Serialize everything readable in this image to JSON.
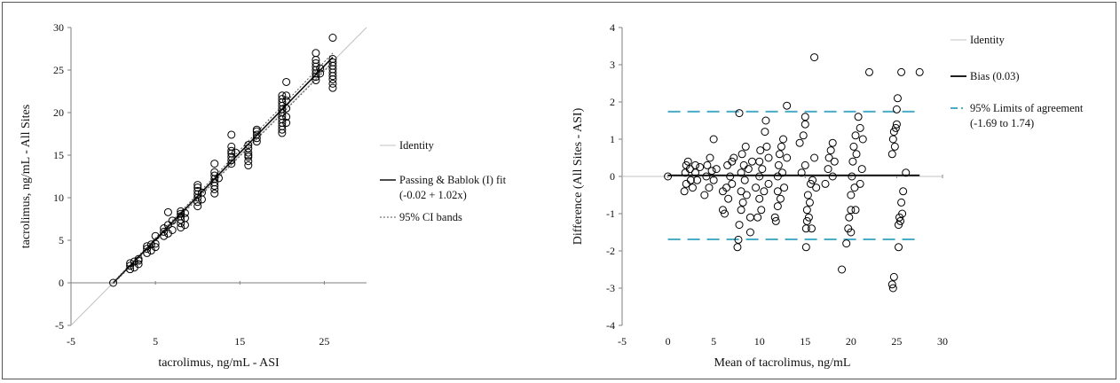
{
  "colors": {
    "axis": "#7f7f7f",
    "identity": "#c0c0c0",
    "fit": "#111111",
    "ci": "#555555",
    "bias": "#000000",
    "limits": "#4bacc6",
    "marker": "#000000"
  },
  "chart_data": [
    {
      "type": "scatter",
      "title": "",
      "xlabel": "tacrolimus,  ng/mL - ASI",
      "ylabel": "tacrolimus, ng/mL - All Sites",
      "xlim": [
        -5,
        30
      ],
      "ylim": [
        -5,
        30
      ],
      "x_ticks": [
        "-5",
        "5",
        "15",
        "25"
      ],
      "y_ticks": [
        "-5",
        "0",
        "5",
        "10",
        "15",
        "20",
        "25",
        "30"
      ],
      "grid": false,
      "legend_position": "right",
      "legend": [
        {
          "name": "Identity",
          "style": "identity"
        },
        {
          "name": "Passing & Bablok (I) fit",
          "sub": "(-0.02 + 1.02x)",
          "style": "fit"
        },
        {
          "name": "95% CI bands",
          "style": "ci"
        }
      ],
      "lines": {
        "identity": [
          [
            -5,
            -5
          ],
          [
            30,
            30
          ]
        ],
        "fit": {
          "intercept": -0.02,
          "slope": 1.02,
          "x_range": [
            0,
            26
          ]
        },
        "ci_bands": {
          "lower": {
            "intercept": -0.12,
            "slope": 1.0
          },
          "upper": {
            "intercept": 0.08,
            "slope": 1.035
          },
          "x_range": [
            0,
            26
          ]
        }
      },
      "series": [
        {
          "marker": "circle",
          "points": [
            [
              0,
              0
            ],
            [
              2,
              1.6
            ],
            [
              2,
              2.0
            ],
            [
              2,
              2.3
            ],
            [
              2.5,
              2.5
            ],
            [
              2.5,
              1.8
            ],
            [
              3,
              2.8
            ],
            [
              3,
              2.6
            ],
            [
              3,
              2.2
            ],
            [
              4,
              3.5
            ],
            [
              4,
              4.0
            ],
            [
              4,
              4.3
            ],
            [
              4.5,
              4.5
            ],
            [
              4.5,
              3.8
            ],
            [
              5,
              5.5
            ],
            [
              5,
              4.6
            ],
            [
              5,
              4.2
            ],
            [
              6,
              5.5
            ],
            [
              6,
              6.0
            ],
            [
              6,
              6.4
            ],
            [
              6.5,
              6.8
            ],
            [
              6.5,
              8.3
            ],
            [
              6.5,
              5.8
            ],
            [
              7,
              7.3
            ],
            [
              7,
              6.2
            ],
            [
              8,
              6.5
            ],
            [
              8,
              7.0
            ],
            [
              8,
              7.4
            ],
            [
              8,
              7.8
            ],
            [
              8,
              8.1
            ],
            [
              8,
              8.4
            ],
            [
              8.5,
              8.2
            ],
            [
              8.5,
              6.8
            ],
            [
              8.5,
              7.6
            ],
            [
              10,
              9.0
            ],
            [
              10,
              9.5
            ],
            [
              10,
              10.0
            ],
            [
              10,
              10.4
            ],
            [
              10,
              10.8
            ],
            [
              10,
              11.2
            ],
            [
              10,
              11.5
            ],
            [
              10.5,
              10.6
            ],
            [
              10.5,
              9.8
            ],
            [
              12,
              10.5
            ],
            [
              12,
              11.0
            ],
            [
              12,
              11.4
            ],
            [
              12,
              11.8
            ],
            [
              12,
              12.2
            ],
            [
              12,
              12.6
            ],
            [
              12,
              13.0
            ],
            [
              12,
              14.0
            ],
            [
              12.5,
              12.3
            ],
            [
              14,
              14.0
            ],
            [
              14,
              14.4
            ],
            [
              14,
              14.8
            ],
            [
              14,
              15.2
            ],
            [
              14,
              15.5
            ],
            [
              14,
              16.0
            ],
            [
              14,
              17.4
            ],
            [
              14.5,
              15.3
            ],
            [
              16,
              13.8
            ],
            [
              16,
              14.3
            ],
            [
              16,
              14.8
            ],
            [
              16,
              15.3
            ],
            [
              16,
              15.8
            ],
            [
              16,
              16.2
            ],
            [
              16,
              15.0
            ],
            [
              17,
              16.6
            ],
            [
              17,
              17.0
            ],
            [
              17,
              17.4
            ],
            [
              17,
              17.8
            ],
            [
              17,
              18.0
            ],
            [
              20,
              17.6
            ],
            [
              20,
              18.0
            ],
            [
              20,
              18.4
            ],
            [
              20,
              18.8
            ],
            [
              20,
              19.2
            ],
            [
              20,
              19.6
            ],
            [
              20,
              20.0
            ],
            [
              20,
              20.4
            ],
            [
              20,
              20.8
            ],
            [
              20,
              21.2
            ],
            [
              20,
              21.6
            ],
            [
              20,
              22.0
            ],
            [
              20.5,
              18.8
            ],
            [
              20.5,
              19.5
            ],
            [
              20.5,
              20.5
            ],
            [
              20.5,
              21.4
            ],
            [
              20.5,
              22.0
            ],
            [
              20.5,
              23.6
            ],
            [
              24,
              23.8
            ],
            [
              24,
              24.2
            ],
            [
              24,
              24.6
            ],
            [
              24,
              25.0
            ],
            [
              24,
              25.4
            ],
            [
              24,
              25.8
            ],
            [
              24,
              26.2
            ],
            [
              24,
              27.0
            ],
            [
              24.5,
              24.6
            ],
            [
              24.5,
              25.2
            ],
            [
              26,
              22.9
            ],
            [
              26,
              23.4
            ],
            [
              26,
              23.9
            ],
            [
              26,
              24.3
            ],
            [
              26,
              24.7
            ],
            [
              26,
              25.1
            ],
            [
              26,
              25.5
            ],
            [
              26,
              25.9
            ],
            [
              26,
              26.3
            ],
            [
              26,
              28.8
            ]
          ]
        }
      ]
    },
    {
      "type": "scatter",
      "title": "",
      "xlabel": "Mean of tacrolimus, ng/mL",
      "ylabel": "Difference (All Sites - ASI)",
      "xlim": [
        -5,
        30
      ],
      "ylim": [
        -4,
        4
      ],
      "x_ticks": [
        "-5",
        "0",
        "5",
        "10",
        "15",
        "20",
        "25",
        "30"
      ],
      "y_ticks": [
        "-4",
        "-3",
        "-2",
        "-1",
        "0",
        "1",
        "2",
        "3",
        "4"
      ],
      "grid": false,
      "legend_position": "right",
      "legend": [
        {
          "name": "Identity",
          "style": "identity"
        },
        {
          "name": "Bias (0.03)",
          "style": "bias"
        },
        {
          "name": "95% Limits of agreement",
          "sub": "(-1.69 to 1.74)",
          "style": "limits"
        }
      ],
      "lines": {
        "identity_y": 0,
        "bias": {
          "value": 0.03,
          "x_range": [
            0,
            27.5
          ]
        },
        "loa_lower": -1.69,
        "loa_upper": 1.74,
        "loa_x_range": [
          0,
          27.5
        ]
      },
      "series": [
        {
          "marker": "circle",
          "points": [
            [
              0,
              0
            ],
            [
              1.8,
              -0.4
            ],
            [
              1.9,
              0.1
            ],
            [
              2,
              0.3
            ],
            [
              2,
              -0.2
            ],
            [
              2.2,
              0.4
            ],
            [
              2.4,
              0.2
            ],
            [
              2.5,
              -0.1
            ],
            [
              2.7,
              -0.3
            ],
            [
              3,
              0.3
            ],
            [
              3,
              0.1
            ],
            [
              3.2,
              -0.1
            ],
            [
              3.5,
              0.25
            ],
            [
              4,
              -0.5
            ],
            [
              4.2,
              0.0
            ],
            [
              4.3,
              0.3
            ],
            [
              4.5,
              -0.3
            ],
            [
              4.6,
              0.5
            ],
            [
              4.8,
              0.15
            ],
            [
              5,
              1.0
            ],
            [
              5,
              -0.1
            ],
            [
              5.3,
              0.2
            ],
            [
              6,
              -0.9
            ],
            [
              6,
              -0.4
            ],
            [
              6.2,
              -1.0
            ],
            [
              6.4,
              -0.3
            ],
            [
              6.5,
              0.3
            ],
            [
              6.6,
              -0.6
            ],
            [
              6.8,
              0.0
            ],
            [
              7,
              0.4
            ],
            [
              7,
              -0.2
            ],
            [
              7.2,
              0.5
            ],
            [
              7.6,
              -1.9
            ],
            [
              7.7,
              -1.7
            ],
            [
              7.8,
              -1.3
            ],
            [
              7.8,
              1.7
            ],
            [
              8,
              -0.9
            ],
            [
              8,
              -0.4
            ],
            [
              8,
              0.1
            ],
            [
              8.1,
              0.6
            ],
            [
              8.2,
              -0.7
            ],
            [
              8.3,
              0.3
            ],
            [
              8.4,
              -0.1
            ],
            [
              8.5,
              0.8
            ],
            [
              8.6,
              -0.5
            ],
            [
              8.8,
              0.2
            ],
            [
              9,
              -1.5
            ],
            [
              9,
              -1.1
            ],
            [
              9.2,
              0.4
            ],
            [
              9.6,
              -0.3
            ],
            [
              9.8,
              -1.1
            ],
            [
              10,
              -0.6
            ],
            [
              10,
              0.0
            ],
            [
              10,
              0.4
            ],
            [
              10.1,
              0.7
            ],
            [
              10.2,
              -0.9
            ],
            [
              10.3,
              0.2
            ],
            [
              10.5,
              -0.4
            ],
            [
              10.6,
              1.2
            ],
            [
              10.7,
              1.5
            ],
            [
              10.8,
              0.8
            ],
            [
              11,
              -0.2
            ],
            [
              11,
              0.5
            ],
            [
              11.7,
              -1.1
            ],
            [
              11.8,
              -1.2
            ],
            [
              12,
              -0.8
            ],
            [
              12,
              -0.4
            ],
            [
              12,
              0.0
            ],
            [
              12.1,
              0.3
            ],
            [
              12.2,
              0.6
            ],
            [
              12.3,
              -0.6
            ],
            [
              12.4,
              0.8
            ],
            [
              12.5,
              0.1
            ],
            [
              12.6,
              1.0
            ],
            [
              12.7,
              -0.3
            ],
            [
              13,
              1.9
            ],
            [
              13,
              0.5
            ],
            [
              14.4,
              0.9
            ],
            [
              14.6,
              0.1
            ],
            [
              14.8,
              1.1
            ],
            [
              15,
              1.4
            ],
            [
              15,
              1.6
            ],
            [
              15,
              0.3
            ],
            [
              15.1,
              -1.9
            ],
            [
              15.1,
              -1.4
            ],
            [
              15.2,
              -1.2
            ],
            [
              15.2,
              -0.9
            ],
            [
              15.3,
              -0.5
            ],
            [
              15.4,
              -1.1
            ],
            [
              15.5,
              -0.7
            ],
            [
              15.6,
              -0.2
            ],
            [
              15.7,
              -1.4
            ],
            [
              15.8,
              -0.1
            ],
            [
              16,
              3.2
            ],
            [
              16,
              0.5
            ],
            [
              16.2,
              -0.3
            ],
            [
              17.2,
              -0.2
            ],
            [
              17.5,
              0.2
            ],
            [
              17.6,
              0.5
            ],
            [
              17.8,
              0.7
            ],
            [
              18,
              0.9
            ],
            [
              18,
              0.0
            ],
            [
              18.2,
              0.4
            ],
            [
              19,
              -2.5
            ],
            [
              19.5,
              -1.8
            ],
            [
              19.7,
              -1.4
            ],
            [
              19.8,
              -1.1
            ],
            [
              20,
              -0.9
            ],
            [
              20,
              -1.5
            ],
            [
              20,
              -0.5
            ],
            [
              20.1,
              0.0
            ],
            [
              20.2,
              0.4
            ],
            [
              20.3,
              0.8
            ],
            [
              20.4,
              -0.3
            ],
            [
              20.5,
              1.1
            ],
            [
              20.5,
              -0.9
            ],
            [
              20.6,
              0.6
            ],
            [
              20.8,
              1.6
            ],
            [
              21,
              1.3
            ],
            [
              21,
              -0.2
            ],
            [
              21.2,
              0.2
            ],
            [
              21.3,
              1.0
            ],
            [
              22,
              2.8
            ],
            [
              24.5,
              -2.9
            ],
            [
              24.6,
              -3.0
            ],
            [
              24.7,
              -2.7
            ],
            [
              24.5,
              0.6
            ],
            [
              24.6,
              1.0
            ],
            [
              24.7,
              1.2
            ],
            [
              24.8,
              0.8
            ],
            [
              24.9,
              1.3
            ],
            [
              25,
              1.4
            ],
            [
              25,
              1.8
            ],
            [
              25.1,
              2.1
            ],
            [
              25.2,
              -1.9
            ],
            [
              25.2,
              -1.3
            ],
            [
              25.3,
              -1.1
            ],
            [
              25.4,
              -1.2
            ],
            [
              25.5,
              2.8
            ],
            [
              25.5,
              -0.7
            ],
            [
              25.6,
              -1.0
            ],
            [
              25.7,
              -0.4
            ],
            [
              26,
              0.1
            ],
            [
              27.5,
              2.8
            ]
          ]
        }
      ]
    }
  ]
}
